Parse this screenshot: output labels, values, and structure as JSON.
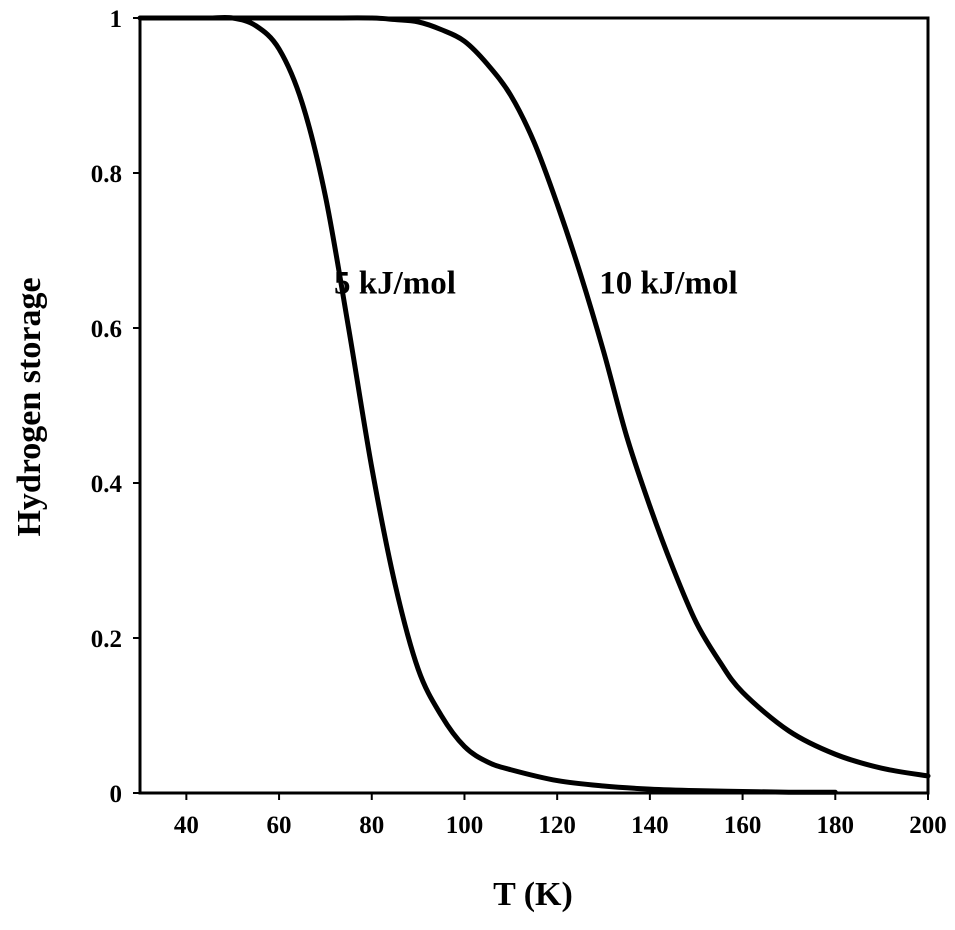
{
  "chart_data": {
    "type": "line",
    "xlabel": "T (K)",
    "ylabel": "Hydrogen storage",
    "xlim": [
      30,
      200
    ],
    "ylim": [
      0,
      1
    ],
    "x_ticks": [
      "40",
      "60",
      "80",
      "100",
      "120",
      "140",
      "160",
      "180",
      "200"
    ],
    "y_ticks": [
      "0",
      "0.2",
      "0.4",
      "0.6",
      "0.8",
      "1"
    ],
    "grid": false,
    "series": [
      {
        "name": "5 kJ/mol",
        "x": [
          40,
          45,
          50,
          55,
          60,
          65,
          70,
          75,
          80,
          85,
          90,
          95,
          100,
          105,
          110,
          120,
          130,
          140,
          150,
          160,
          170,
          180
        ],
        "y": [
          1.0,
          1.0,
          1.0,
          0.99,
          0.96,
          0.89,
          0.77,
          0.6,
          0.42,
          0.27,
          0.16,
          0.1,
          0.06,
          0.04,
          0.03,
          0.016,
          0.009,
          0.005,
          0.003,
          0.002,
          0.001,
          0.001
        ]
      },
      {
        "name": "10 kJ/mol",
        "x": [
          30,
          40,
          50,
          60,
          70,
          80,
          85,
          90,
          95,
          100,
          105,
          110,
          115,
          120,
          125,
          130,
          135,
          140,
          145,
          150,
          155,
          160,
          170,
          180,
          190,
          200
        ],
        "y": [
          1.0,
          1.0,
          1.0,
          1.0,
          1.0,
          1.0,
          0.998,
          0.995,
          0.985,
          0.97,
          0.94,
          0.9,
          0.84,
          0.76,
          0.67,
          0.57,
          0.46,
          0.37,
          0.29,
          0.22,
          0.17,
          0.13,
          0.08,
          0.05,
          0.032,
          0.022
        ]
      }
    ],
    "annotations": [
      {
        "text": "5 kJ/mol",
        "x": 85,
        "y": 0.66
      },
      {
        "text": "10 kJ/mol",
        "x": 144,
        "y": 0.66
      }
    ]
  }
}
